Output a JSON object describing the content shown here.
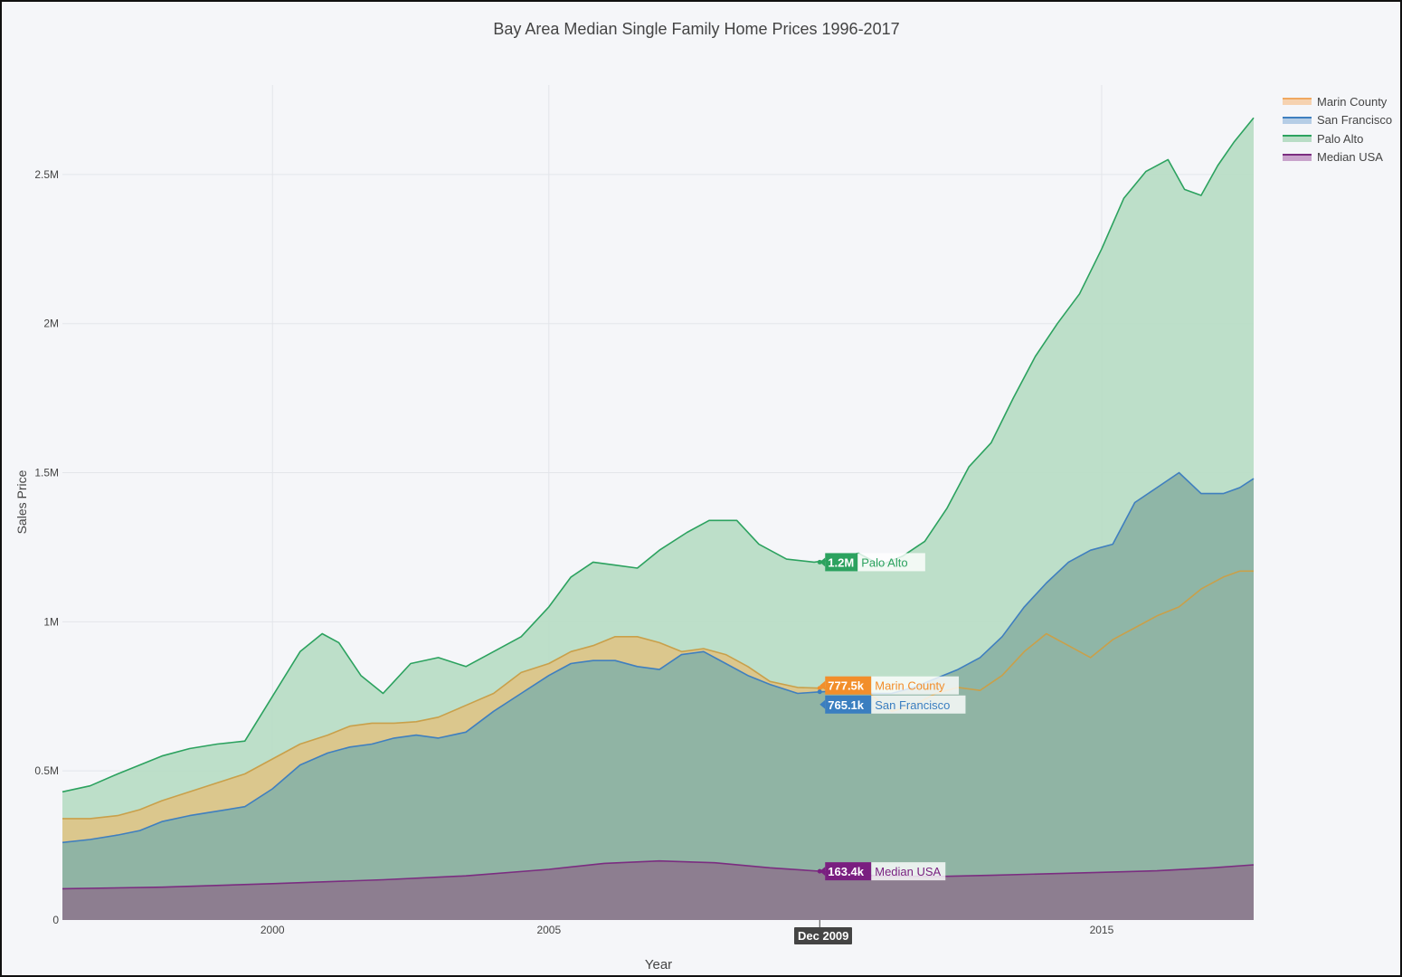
{
  "chart_data": {
    "type": "area",
    "title": "Bay Area Median Single Family Home Prices 1996-2017",
    "xlabel": "Year",
    "ylabel": "Sales Price",
    "xlim": [
      1996.2,
      2017.75
    ],
    "ylim": [
      0,
      2800000
    ],
    "x_ticks": [
      2000,
      2005,
      2015
    ],
    "x_tick_labels": [
      "2000",
      "2005",
      "2015"
    ],
    "y_ticks": [
      0,
      500000,
      1000000,
      1500000,
      2000000,
      2500000
    ],
    "y_tick_labels": [
      "0",
      "0.5M",
      "1M",
      "1.5M",
      "2M",
      "2.5M"
    ],
    "grid": true,
    "legend_position": "top-right",
    "series": [
      {
        "name": "Palo Alto",
        "color": "#2ca25f",
        "fill": "#b9ddc6",
        "x": [
          1996.2,
          1996.7,
          1997.2,
          1997.6,
          1998.0,
          1998.5,
          1999.0,
          1999.5,
          2000.0,
          2000.5,
          2000.9,
          2001.2,
          2001.6,
          2002.0,
          2002.2,
          2002.5,
          2003.0,
          2003.5,
          2004.0,
          2004.5,
          2005.0,
          2005.4,
          2005.8,
          2006.2,
          2006.6,
          2007.0,
          2007.5,
          2007.9,
          2008.4,
          2008.8,
          2009.3,
          2009.8,
          2010.2,
          2010.6,
          2011.0,
          2011.4,
          2011.8,
          2012.2,
          2012.6,
          2013.0,
          2013.4,
          2013.8,
          2014.2,
          2014.6,
          2015.0,
          2015.4,
          2015.8,
          2016.2,
          2016.5,
          2016.8,
          2017.1,
          2017.4,
          2017.75
        ],
        "values": [
          430000,
          450000,
          490000,
          520000,
          550000,
          575000,
          590000,
          600000,
          750000,
          900000,
          960000,
          930000,
          820000,
          760000,
          800000,
          860000,
          880000,
          850000,
          900000,
          950000,
          1050000,
          1150000,
          1200000,
          1190000,
          1180000,
          1240000,
          1300000,
          1340000,
          1340000,
          1260000,
          1210000,
          1200000,
          1210000,
          1230000,
          1190000,
          1220000,
          1270000,
          1380000,
          1520000,
          1600000,
          1750000,
          1890000,
          2000000,
          2100000,
          2250000,
          2420000,
          2510000,
          2550000,
          2450000,
          2430000,
          2530000,
          2610000,
          2690000
        ]
      },
      {
        "name": "Marin County",
        "color": "#c9a04a",
        "fill": "#dcc58a",
        "x": [
          1996.2,
          1996.7,
          1997.2,
          1997.6,
          1998.0,
          1998.5,
          1999.0,
          1999.5,
          2000.0,
          2000.5,
          2001.0,
          2001.4,
          2001.8,
          2002.2,
          2002.6,
          2003.0,
          2003.5,
          2004.0,
          2004.5,
          2005.0,
          2005.4,
          2005.8,
          2006.2,
          2006.6,
          2007.0,
          2007.4,
          2007.8,
          2008.2,
          2008.6,
          2009.0,
          2009.5,
          2009.9,
          2010.4,
          2010.8,
          2011.2,
          2011.6,
          2012.0,
          2012.4,
          2012.8,
          2013.2,
          2013.6,
          2014.0,
          2014.4,
          2014.8,
          2015.2,
          2015.6,
          2016.0,
          2016.4,
          2016.8,
          2017.2,
          2017.5,
          2017.75
        ],
        "values": [
          340000,
          340000,
          350000,
          370000,
          400000,
          430000,
          460000,
          490000,
          540000,
          590000,
          620000,
          650000,
          660000,
          660000,
          665000,
          680000,
          720000,
          760000,
          830000,
          860000,
          900000,
          920000,
          950000,
          950000,
          930000,
          900000,
          910000,
          890000,
          850000,
          800000,
          780000,
          777500,
          780000,
          760000,
          700000,
          720000,
          760000,
          780000,
          770000,
          820000,
          900000,
          960000,
          920000,
          880000,
          940000,
          980000,
          1020000,
          1050000,
          1110000,
          1150000,
          1170000,
          1170000
        ]
      },
      {
        "name": "San Francisco",
        "color": "#3f7fbf",
        "fill": "#8cb3a5",
        "x": [
          1996.2,
          1996.7,
          1997.2,
          1997.6,
          1998.0,
          1998.5,
          1999.0,
          1999.5,
          2000.0,
          2000.5,
          2001.0,
          2001.4,
          2001.8,
          2002.2,
          2002.6,
          2003.0,
          2003.5,
          2004.0,
          2004.5,
          2005.0,
          2005.4,
          2005.8,
          2006.2,
          2006.6,
          2007.0,
          2007.4,
          2007.8,
          2008.2,
          2008.6,
          2009.0,
          2009.5,
          2009.9,
          2010.4,
          2010.8,
          2011.2,
          2011.6,
          2012.0,
          2012.4,
          2012.8,
          2013.2,
          2013.6,
          2014.0,
          2014.4,
          2014.8,
          2015.2,
          2015.6,
          2016.0,
          2016.4,
          2016.8,
          2017.2,
          2017.5,
          2017.75
        ],
        "values": [
          260000,
          270000,
          285000,
          300000,
          330000,
          350000,
          365000,
          380000,
          440000,
          520000,
          560000,
          580000,
          590000,
          610000,
          620000,
          610000,
          630000,
          700000,
          760000,
          820000,
          860000,
          870000,
          870000,
          850000,
          840000,
          890000,
          900000,
          860000,
          820000,
          790000,
          760000,
          765100,
          770000,
          760000,
          760000,
          780000,
          810000,
          840000,
          880000,
          950000,
          1050000,
          1130000,
          1200000,
          1240000,
          1260000,
          1400000,
          1450000,
          1500000,
          1430000,
          1430000,
          1450000,
          1480000
        ]
      },
      {
        "name": "Median USA",
        "color": "#7b2d80",
        "fill": "#8d7b8f",
        "x": [
          1996.2,
          1998.0,
          2000.0,
          2002.0,
          2003.5,
          2005.0,
          2006.0,
          2007.0,
          2008.0,
          2009.0,
          2009.9,
          2010.5,
          2011.0,
          2012.0,
          2013.0,
          2014.0,
          2015.0,
          2016.0,
          2017.0,
          2017.75
        ],
        "values": [
          105000,
          110000,
          122000,
          135000,
          148000,
          170000,
          190000,
          198000,
          192000,
          175000,
          163400,
          152000,
          148000,
          146000,
          150000,
          155000,
          160000,
          165000,
          175000,
          185000
        ]
      }
    ],
    "hover": {
      "x_label": "Dec 2009",
      "x": 2009.9,
      "items": [
        {
          "series": "Palo Alto",
          "value_text": "1.2M",
          "value": 1200000,
          "label": "Palo Alto",
          "color": "#2ca25f"
        },
        {
          "series": "Marin County",
          "value_text": "777.5k",
          "value": 777500,
          "label": "Marin County",
          "color": "#f28e2b"
        },
        {
          "series": "San Francisco",
          "value_text": "765.1k",
          "value": 765100,
          "label": "San Francisco",
          "color": "#3a7ec0"
        },
        {
          "series": "Median USA",
          "value_text": "163.4k",
          "value": 163400,
          "label": "Median USA",
          "color": "#7a1f80"
        }
      ]
    }
  },
  "legend": [
    {
      "label": "Marin County",
      "color": "#f0a860",
      "fill": "#f6d2b0"
    },
    {
      "label": "San Francisco",
      "color": "#3f7fbf",
      "fill": "#b5cde6"
    },
    {
      "label": "Palo Alto",
      "color": "#2ca25f",
      "fill": "#b9ddc6"
    },
    {
      "label": "Median USA",
      "color": "#7b2d80",
      "fill": "#c9a3cc"
    }
  ]
}
